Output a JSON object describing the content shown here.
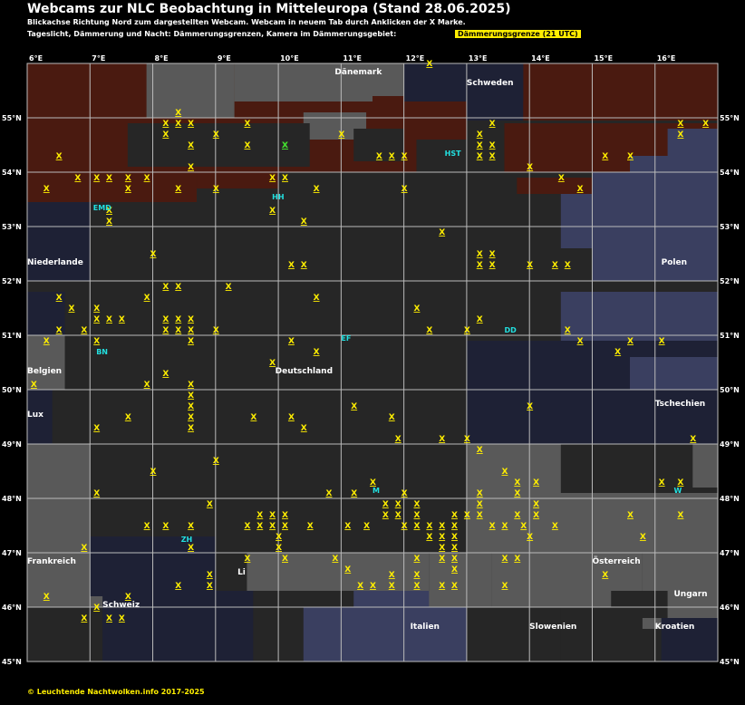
{
  "header": {
    "title": "Webcams zur NLC Beobachtung in Mitteleuropa (Stand 28.06.2025)",
    "line1": "Blickachse Richtung Nord zum dargestellten Webcam. Webcam in neuem Tab durch Anklicken der X Marke.",
    "line2": "Tageslicht, Dämmerung und Nacht: Dämmerungsgrenzen, Kamera im Dämmerungsgebiet:",
    "highlight": "Dämmerungsgrenze (21 UTC)"
  },
  "footer": {
    "copyright": "© Leuchtende Nachtwolken.info 2017-2025"
  },
  "colors": {
    "daylight": "#4a1a10",
    "twilight": "#595959",
    "night": "#262626",
    "deepnight": "#1e2135",
    "sea": "#3a3f60",
    "grid": "#bbbbbb",
    "mark": "#ffee00",
    "city": "#22e0e0"
  },
  "grid": {
    "lon_labels": [
      "6°E",
      "7°E",
      "8°E",
      "9°E",
      "10°E",
      "11°E",
      "12°E",
      "13°E",
      "14°E",
      "15°E",
      "16°E"
    ],
    "lat_labels": [
      "55°N",
      "54°N",
      "53°N",
      "52°N",
      "51°N",
      "50°N",
      "49°N",
      "48°N",
      "47°N",
      "46°N",
      "45°N"
    ]
  },
  "countries": [
    {
      "name": "Dänemark",
      "lon": 10.9,
      "lat": 55.8
    },
    {
      "name": "Schweden",
      "lon": 13.0,
      "lat": 55.6
    },
    {
      "name": "Niederlande",
      "lon": 6.0,
      "lat": 52.3
    },
    {
      "name": "Polen",
      "lon": 16.1,
      "lat": 52.3
    },
    {
      "name": "Belgien",
      "lon": 6.0,
      "lat": 50.3
    },
    {
      "name": "Deutschland",
      "lon": 9.95,
      "lat": 50.3
    },
    {
      "name": "Lux",
      "lon": 6.0,
      "lat": 49.5
    },
    {
      "name": "Tschechien",
      "lon": 16.0,
      "lat": 49.7
    },
    {
      "name": "Frankreich",
      "lon": 6.0,
      "lat": 46.8
    },
    {
      "name": "Österreich",
      "lon": 15.0,
      "lat": 46.8
    },
    {
      "name": "Ungarn",
      "lon": 16.3,
      "lat": 46.2
    },
    {
      "name": "Schweiz",
      "lon": 7.2,
      "lat": 46.0
    },
    {
      "name": "Li",
      "lon": 9.35,
      "lat": 46.6
    },
    {
      "name": "Italien",
      "lon": 12.1,
      "lat": 45.6
    },
    {
      "name": "Slowenien",
      "lon": 14.0,
      "lat": 45.6
    },
    {
      "name": "Kroatien",
      "lon": 16.0,
      "lat": 45.6
    }
  ],
  "cities": [
    {
      "name": "HST",
      "lon": 12.65,
      "lat": 54.3
    },
    {
      "name": "HH",
      "lon": 9.9,
      "lat": 53.5
    },
    {
      "name": "EMD",
      "lon": 7.05,
      "lat": 53.3
    },
    {
      "name": "DD",
      "lon": 13.6,
      "lat": 51.05
    },
    {
      "name": "EF",
      "lon": 11.0,
      "lat": 50.9
    },
    {
      "name": "BN",
      "lon": 7.1,
      "lat": 50.65
    },
    {
      "name": "M",
      "lon": 11.5,
      "lat": 48.1
    },
    {
      "name": "W",
      "lon": 16.3,
      "lat": 48.1
    },
    {
      "name": "ZH",
      "lon": 8.45,
      "lat": 47.2
    }
  ],
  "webcam_marks": [
    [
      12.4,
      56.0
    ],
    [
      8.4,
      55.1
    ],
    [
      8.2,
      54.9
    ],
    [
      8.4,
      54.9
    ],
    [
      8.6,
      54.9
    ],
    [
      9.5,
      54.9
    ],
    [
      8.2,
      54.7
    ],
    [
      8.6,
      54.5
    ],
    [
      9.0,
      54.7
    ],
    [
      9.5,
      54.5
    ],
    [
      10.1,
      54.5
    ],
    [
      11.0,
      54.7
    ],
    [
      13.4,
      54.9
    ],
    [
      13.2,
      54.7
    ],
    [
      13.2,
      54.5
    ],
    [
      13.4,
      54.5
    ],
    [
      13.2,
      54.3
    ],
    [
      13.4,
      54.3
    ],
    [
      11.6,
      54.3
    ],
    [
      11.8,
      54.3
    ],
    [
      12.0,
      54.3
    ],
    [
      16.4,
      54.9
    ],
    [
      16.4,
      54.7
    ],
    [
      16.8,
      54.9
    ],
    [
      15.2,
      54.3
    ],
    [
      15.6,
      54.3
    ],
    [
      6.5,
      54.3
    ],
    [
      8.6,
      54.1
    ],
    [
      6.8,
      53.9
    ],
    [
      7.1,
      53.9
    ],
    [
      7.3,
      53.9
    ],
    [
      7.6,
      53.9
    ],
    [
      7.9,
      53.9
    ],
    [
      9.9,
      53.9
    ],
    [
      10.1,
      53.9
    ],
    [
      14.0,
      54.1
    ],
    [
      14.5,
      53.9
    ],
    [
      6.3,
      53.7
    ],
    [
      7.6,
      53.7
    ],
    [
      8.4,
      53.7
    ],
    [
      9.0,
      53.7
    ],
    [
      9.9,
      53.3
    ],
    [
      10.6,
      53.7
    ],
    [
      12.0,
      53.7
    ],
    [
      14.8,
      53.7
    ],
    [
      7.3,
      53.3
    ],
    [
      7.3,
      53.1
    ],
    [
      10.4,
      53.1
    ],
    [
      12.6,
      52.9
    ],
    [
      8.0,
      52.5
    ],
    [
      13.2,
      52.5
    ],
    [
      13.4,
      52.5
    ],
    [
      10.2,
      52.3
    ],
    [
      10.4,
      52.3
    ],
    [
      13.2,
      52.3
    ],
    [
      13.4,
      52.3
    ],
    [
      14.0,
      52.3
    ],
    [
      14.4,
      52.3
    ],
    [
      14.6,
      52.3
    ],
    [
      8.2,
      51.9
    ],
    [
      8.4,
      51.9
    ],
    [
      9.2,
      51.9
    ],
    [
      6.5,
      51.7
    ],
    [
      6.7,
      51.5
    ],
    [
      7.1,
      51.5
    ],
    [
      7.9,
      51.7
    ],
    [
      10.6,
      51.7
    ],
    [
      7.1,
      51.3
    ],
    [
      7.3,
      51.3
    ],
    [
      7.5,
      51.3
    ],
    [
      8.2,
      51.3
    ],
    [
      8.4,
      51.3
    ],
    [
      8.6,
      51.3
    ],
    [
      12.2,
      51.5
    ],
    [
      13.2,
      51.3
    ],
    [
      6.5,
      51.1
    ],
    [
      6.9,
      51.1
    ],
    [
      8.2,
      51.1
    ],
    [
      8.4,
      51.1
    ],
    [
      8.6,
      51.1
    ],
    [
      9.0,
      51.1
    ],
    [
      12.4,
      51.1
    ],
    [
      13.0,
      51.1
    ],
    [
      14.6,
      51.1
    ],
    [
      6.3,
      50.9
    ],
    [
      7.1,
      50.9
    ],
    [
      8.6,
      50.9
    ],
    [
      10.2,
      50.9
    ],
    [
      14.8,
      50.9
    ],
    [
      15.6,
      50.9
    ],
    [
      16.1,
      50.9
    ],
    [
      15.4,
      50.7
    ],
    [
      10.6,
      50.7
    ],
    [
      9.9,
      50.5
    ],
    [
      6.1,
      50.1
    ],
    [
      7.9,
      50.1
    ],
    [
      8.2,
      50.3
    ],
    [
      8.6,
      50.1
    ],
    [
      8.6,
      49.9
    ],
    [
      8.6,
      49.7
    ],
    [
      7.6,
      49.5
    ],
    [
      8.6,
      49.5
    ],
    [
      8.6,
      49.3
    ],
    [
      7.1,
      49.3
    ],
    [
      9.6,
      49.5
    ],
    [
      10.2,
      49.5
    ],
    [
      10.4,
      49.3
    ],
    [
      11.2,
      49.7
    ],
    [
      11.8,
      49.5
    ],
    [
      11.9,
      49.1
    ],
    [
      14.0,
      49.7
    ],
    [
      16.6,
      49.1
    ],
    [
      12.6,
      49.1
    ],
    [
      13.0,
      49.1
    ],
    [
      13.2,
      48.9
    ],
    [
      8.0,
      48.5
    ],
    [
      9.0,
      48.7
    ],
    [
      10.8,
      48.1
    ],
    [
      11.2,
      48.1
    ],
    [
      11.5,
      48.3
    ],
    [
      12.0,
      48.1
    ],
    [
      12.2,
      47.9
    ],
    [
      12.2,
      47.7
    ],
    [
      11.7,
      47.9
    ],
    [
      11.9,
      47.9
    ],
    [
      7.1,
      48.1
    ],
    [
      13.2,
      48.1
    ],
    [
      13.2,
      47.9
    ],
    [
      13.6,
      48.5
    ],
    [
      13.8,
      48.3
    ],
    [
      14.1,
      48.3
    ],
    [
      16.1,
      48.3
    ],
    [
      16.4,
      48.3
    ],
    [
      13.8,
      48.1
    ],
    [
      14.1,
      47.9
    ],
    [
      8.9,
      47.9
    ],
    [
      9.7,
      47.7
    ],
    [
      9.9,
      47.7
    ],
    [
      10.1,
      47.7
    ],
    [
      9.7,
      47.5
    ],
    [
      9.9,
      47.5
    ],
    [
      10.1,
      47.5
    ],
    [
      10.5,
      47.5
    ],
    [
      11.1,
      47.5
    ],
    [
      11.4,
      47.5
    ],
    [
      11.7,
      47.7
    ],
    [
      11.9,
      47.7
    ],
    [
      12.0,
      47.5
    ],
    [
      12.2,
      47.5
    ],
    [
      12.4,
      47.5
    ],
    [
      12.6,
      47.5
    ],
    [
      12.8,
      47.7
    ],
    [
      12.8,
      47.5
    ],
    [
      13.0,
      47.7
    ],
    [
      13.2,
      47.7
    ],
    [
      13.4,
      47.5
    ],
    [
      13.6,
      47.5
    ],
    [
      13.8,
      47.7
    ],
    [
      14.1,
      47.7
    ],
    [
      13.9,
      47.5
    ],
    [
      14.4,
      47.5
    ],
    [
      15.6,
      47.7
    ],
    [
      16.4,
      47.7
    ],
    [
      7.9,
      47.5
    ],
    [
      8.2,
      47.5
    ],
    [
      8.6,
      47.5
    ],
    [
      9.5,
      47.5
    ],
    [
      10.0,
      47.3
    ],
    [
      12.4,
      47.3
    ],
    [
      12.6,
      47.3
    ],
    [
      12.6,
      47.1
    ],
    [
      12.8,
      47.3
    ],
    [
      12.8,
      47.1
    ],
    [
      14.0,
      47.3
    ],
    [
      15.8,
      47.3
    ],
    [
      6.9,
      47.1
    ],
    [
      8.6,
      47.1
    ],
    [
      10.0,
      47.1
    ],
    [
      9.5,
      46.9
    ],
    [
      10.1,
      46.9
    ],
    [
      10.9,
      46.9
    ],
    [
      12.2,
      46.9
    ],
    [
      12.6,
      46.9
    ],
    [
      12.8,
      46.9
    ],
    [
      13.6,
      46.9
    ],
    [
      13.8,
      46.9
    ],
    [
      12.8,
      46.7
    ],
    [
      11.1,
      46.7
    ],
    [
      8.9,
      46.6
    ],
    [
      8.9,
      46.4
    ],
    [
      8.4,
      46.4
    ],
    [
      11.3,
      46.4
    ],
    [
      11.5,
      46.4
    ],
    [
      11.8,
      46.6
    ],
    [
      11.8,
      46.4
    ],
    [
      12.2,
      46.6
    ],
    [
      12.2,
      46.4
    ],
    [
      12.6,
      46.4
    ],
    [
      12.8,
      46.4
    ],
    [
      13.6,
      46.4
    ],
    [
      15.2,
      46.6
    ],
    [
      7.6,
      46.2
    ],
    [
      6.3,
      46.2
    ],
    [
      7.1,
      46.0
    ],
    [
      6.9,
      45.8
    ],
    [
      7.3,
      45.8
    ],
    [
      7.5,
      45.8
    ]
  ],
  "green_mark": [
    10.1,
    54.5
  ]
}
